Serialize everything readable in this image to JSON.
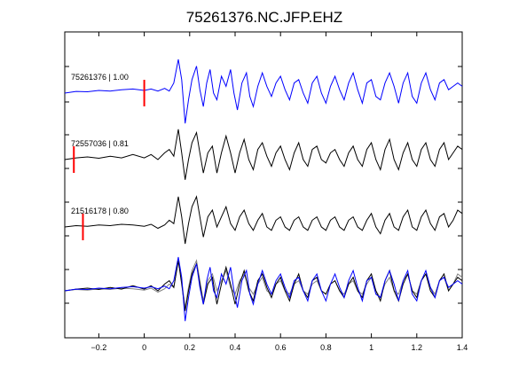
{
  "chart_data": {
    "type": "line",
    "title": "75261376.NC.JFP.EHZ",
    "xlabel": "",
    "ylabel": "",
    "xlim": [
      -0.35,
      1.4
    ],
    "x_ticks": [
      -0.2,
      0,
      0.2,
      0.4,
      0.6,
      0.8,
      1,
      1.2,
      1.4
    ],
    "x_tick_labels": [
      "−0.2",
      "0",
      "0.2",
      "0.4",
      "0.6",
      "0.8",
      "1",
      "1.2",
      "1.4"
    ],
    "grid": false,
    "colors": {
      "main_trace": "#0000ff",
      "other_trace": "#000000",
      "overlay_gray": "#808080",
      "pick_marker": "#ff0000"
    },
    "traces": [
      {
        "label": "75261376 | 1.00",
        "event_id": "75261376",
        "correlation": "1.00",
        "color": "#0000ff",
        "pick_time": 0.0,
        "points": [
          [
            -0.35,
            0.0
          ],
          [
            -0.3,
            0.05
          ],
          [
            -0.25,
            0.04
          ],
          [
            -0.2,
            0.08
          ],
          [
            -0.15,
            0.06
          ],
          [
            -0.1,
            0.1
          ],
          [
            -0.05,
            0.12
          ],
          [
            0.0,
            0.08
          ],
          [
            0.03,
            0.12
          ],
          [
            0.06,
            0.06
          ],
          [
            0.09,
            0.14
          ],
          [
            0.11,
            0.06
          ],
          [
            0.13,
            0.3
          ],
          [
            0.15,
            1.0
          ],
          [
            0.165,
            0.4
          ],
          [
            0.18,
            -0.9
          ],
          [
            0.195,
            -0.2
          ],
          [
            0.21,
            0.4
          ],
          [
            0.23,
            0.8
          ],
          [
            0.245,
            0.1
          ],
          [
            0.26,
            -0.4
          ],
          [
            0.275,
            0.3
          ],
          [
            0.29,
            0.7
          ],
          [
            0.305,
            0.0
          ],
          [
            0.32,
            -0.2
          ],
          [
            0.34,
            0.5
          ],
          [
            0.36,
            0.2
          ],
          [
            0.38,
            0.7
          ],
          [
            0.395,
            0.0
          ],
          [
            0.41,
            -0.5
          ],
          [
            0.43,
            0.3
          ],
          [
            0.45,
            0.6
          ],
          [
            0.465,
            -0.1
          ],
          [
            0.48,
            -0.4
          ],
          [
            0.5,
            0.2
          ],
          [
            0.52,
            0.6
          ],
          [
            0.54,
            0.2
          ],
          [
            0.56,
            -0.1
          ],
          [
            0.58,
            0.3
          ],
          [
            0.6,
            0.5
          ],
          [
            0.62,
            0.1
          ],
          [
            0.64,
            -0.2
          ],
          [
            0.66,
            0.3
          ],
          [
            0.68,
            0.4
          ],
          [
            0.7,
            0.0
          ],
          [
            0.72,
            -0.3
          ],
          [
            0.74,
            0.3
          ],
          [
            0.76,
            0.5
          ],
          [
            0.78,
            0.0
          ],
          [
            0.8,
            -0.3
          ],
          [
            0.82,
            0.2
          ],
          [
            0.84,
            0.5
          ],
          [
            0.86,
            0.1
          ],
          [
            0.88,
            -0.2
          ],
          [
            0.9,
            0.3
          ],
          [
            0.92,
            0.6
          ],
          [
            0.94,
            0.1
          ],
          [
            0.96,
            -0.3
          ],
          [
            0.98,
            0.3
          ],
          [
            1.0,
            0.4
          ],
          [
            1.02,
            -0.1
          ],
          [
            1.04,
            -0.2
          ],
          [
            1.06,
            0.3
          ],
          [
            1.08,
            0.6
          ],
          [
            1.1,
            0.2
          ],
          [
            1.12,
            -0.3
          ],
          [
            1.14,
            0.3
          ],
          [
            1.16,
            0.6
          ],
          [
            1.18,
            -0.1
          ],
          [
            1.2,
            -0.3
          ],
          [
            1.22,
            0.3
          ],
          [
            1.24,
            0.6
          ],
          [
            1.26,
            0.1
          ],
          [
            1.28,
            -0.2
          ],
          [
            1.3,
            0.3
          ],
          [
            1.32,
            0.4
          ],
          [
            1.34,
            0.1
          ],
          [
            1.36,
            0.2
          ],
          [
            1.38,
            0.3
          ],
          [
            1.4,
            0.2
          ]
        ]
      },
      {
        "label": "72557036 | 0.81",
        "event_id": "72557036",
        "correlation": "0.81",
        "color": "#000000",
        "pick_time": -0.31,
        "points": [
          [
            -0.35,
            0.0
          ],
          [
            -0.3,
            0.05
          ],
          [
            -0.25,
            0.08
          ],
          [
            -0.2,
            0.04
          ],
          [
            -0.15,
            0.1
          ],
          [
            -0.1,
            0.05
          ],
          [
            -0.05,
            0.15
          ],
          [
            0.0,
            0.05
          ],
          [
            0.03,
            0.15
          ],
          [
            0.06,
            0.0
          ],
          [
            0.09,
            0.2
          ],
          [
            0.11,
            0.3
          ],
          [
            0.13,
            0.1
          ],
          [
            0.15,
            0.9
          ],
          [
            0.165,
            0.2
          ],
          [
            0.18,
            -0.6
          ],
          [
            0.195,
            0.0
          ],
          [
            0.21,
            0.5
          ],
          [
            0.23,
            0.8
          ],
          [
            0.245,
            0.2
          ],
          [
            0.26,
            -0.4
          ],
          [
            0.28,
            0.2
          ],
          [
            0.3,
            0.4
          ],
          [
            0.32,
            -0.4
          ],
          [
            0.34,
            0.2
          ],
          [
            0.36,
            0.7
          ],
          [
            0.38,
            0.2
          ],
          [
            0.4,
            -0.4
          ],
          [
            0.42,
            0.2
          ],
          [
            0.44,
            0.6
          ],
          [
            0.46,
            0.0
          ],
          [
            0.48,
            -0.3
          ],
          [
            0.5,
            0.3
          ],
          [
            0.52,
            0.5
          ],
          [
            0.54,
            0.1
          ],
          [
            0.56,
            -0.2
          ],
          [
            0.58,
            0.2
          ],
          [
            0.6,
            0.4
          ],
          [
            0.62,
            0.0
          ],
          [
            0.64,
            -0.3
          ],
          [
            0.66,
            0.2
          ],
          [
            0.68,
            0.5
          ],
          [
            0.7,
            0.0
          ],
          [
            0.72,
            -0.2
          ],
          [
            0.74,
            0.3
          ],
          [
            0.76,
            0.4
          ],
          [
            0.78,
            0.0
          ],
          [
            0.8,
            -0.1
          ],
          [
            0.82,
            0.2
          ],
          [
            0.84,
            0.3
          ],
          [
            0.86,
            0.0
          ],
          [
            0.88,
            -0.2
          ],
          [
            0.9,
            0.2
          ],
          [
            0.92,
            0.4
          ],
          [
            0.94,
            0.0
          ],
          [
            0.96,
            -0.2
          ],
          [
            0.98,
            0.3
          ],
          [
            1.0,
            0.5
          ],
          [
            1.02,
            0.0
          ],
          [
            1.04,
            -0.3
          ],
          [
            1.06,
            0.3
          ],
          [
            1.08,
            0.6
          ],
          [
            1.1,
            0.0
          ],
          [
            1.12,
            -0.3
          ],
          [
            1.14,
            0.2
          ],
          [
            1.16,
            0.5
          ],
          [
            1.18,
            0.0
          ],
          [
            1.2,
            -0.2
          ],
          [
            1.22,
            0.3
          ],
          [
            1.24,
            0.5
          ],
          [
            1.26,
            0.0
          ],
          [
            1.28,
            -0.2
          ],
          [
            1.3,
            0.3
          ],
          [
            1.32,
            0.5
          ],
          [
            1.34,
            0.0
          ],
          [
            1.36,
            0.2
          ],
          [
            1.38,
            0.4
          ],
          [
            1.4,
            0.3
          ]
        ]
      },
      {
        "label": "21516178 | 0.80",
        "event_id": "21516178",
        "correlation": "0.80",
        "color": "#000000",
        "pick_time": -0.27,
        "points": [
          [
            -0.35,
            0.0
          ],
          [
            -0.3,
            0.04
          ],
          [
            -0.25,
            0.02
          ],
          [
            -0.2,
            0.06
          ],
          [
            -0.15,
            0.04
          ],
          [
            -0.1,
            0.08
          ],
          [
            -0.05,
            0.06
          ],
          [
            0.0,
            0.02
          ],
          [
            0.03,
            0.08
          ],
          [
            0.06,
            -0.04
          ],
          [
            0.09,
            0.06
          ],
          [
            0.11,
            0.2
          ],
          [
            0.13,
            0.1
          ],
          [
            0.15,
            0.9
          ],
          [
            0.165,
            0.3
          ],
          [
            0.18,
            -0.5
          ],
          [
            0.195,
            0.1
          ],
          [
            0.21,
            0.6
          ],
          [
            0.23,
            0.9
          ],
          [
            0.245,
            0.3
          ],
          [
            0.26,
            -0.3
          ],
          [
            0.28,
            0.3
          ],
          [
            0.3,
            0.5
          ],
          [
            0.32,
            0.0
          ],
          [
            0.34,
            0.3
          ],
          [
            0.36,
            0.6
          ],
          [
            0.38,
            0.1
          ],
          [
            0.4,
            -0.1
          ],
          [
            0.42,
            0.3
          ],
          [
            0.44,
            0.5
          ],
          [
            0.46,
            0.1
          ],
          [
            0.48,
            -0.1
          ],
          [
            0.5,
            0.2
          ],
          [
            0.52,
            0.4
          ],
          [
            0.54,
            0.0
          ],
          [
            0.56,
            -0.1
          ],
          [
            0.58,
            0.2
          ],
          [
            0.6,
            0.3
          ],
          [
            0.62,
            0.0
          ],
          [
            0.64,
            -0.1
          ],
          [
            0.66,
            0.2
          ],
          [
            0.68,
            0.3
          ],
          [
            0.7,
            0.0
          ],
          [
            0.72,
            -0.1
          ],
          [
            0.74,
            0.2
          ],
          [
            0.76,
            0.3
          ],
          [
            0.78,
            0.0
          ],
          [
            0.8,
            -0.1
          ],
          [
            0.82,
            0.2
          ],
          [
            0.84,
            0.3
          ],
          [
            0.86,
            0.0
          ],
          [
            0.88,
            -0.1
          ],
          [
            0.9,
            0.2
          ],
          [
            0.92,
            0.3
          ],
          [
            0.94,
            0.0
          ],
          [
            0.96,
            -0.1
          ],
          [
            0.98,
            0.2
          ],
          [
            1.0,
            0.4
          ],
          [
            1.02,
            0.0
          ],
          [
            1.04,
            -0.2
          ],
          [
            1.06,
            0.2
          ],
          [
            1.08,
            0.4
          ],
          [
            1.1,
            0.0
          ],
          [
            1.12,
            -0.1
          ],
          [
            1.14,
            0.3
          ],
          [
            1.16,
            0.5
          ],
          [
            1.18,
            0.0
          ],
          [
            1.2,
            -0.1
          ],
          [
            1.22,
            0.3
          ],
          [
            1.24,
            0.5
          ],
          [
            1.26,
            0.1
          ],
          [
            1.28,
            -0.1
          ],
          [
            1.3,
            0.3
          ],
          [
            1.32,
            0.4
          ],
          [
            1.34,
            0.0
          ],
          [
            1.36,
            0.2
          ],
          [
            1.38,
            0.5
          ],
          [
            1.4,
            0.4
          ]
        ]
      }
    ],
    "overlay": {
      "description_series_colors": [
        "#808080",
        "#000000",
        "#0000ff"
      ]
    }
  }
}
